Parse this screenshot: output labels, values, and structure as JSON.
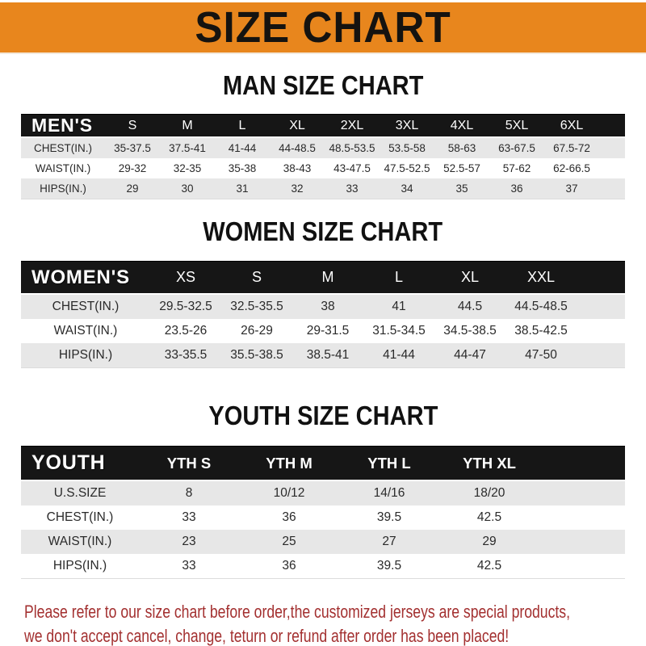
{
  "banner": {
    "title": "SIZE CHART",
    "bg_color": "#e8861d",
    "text_color": "#151310"
  },
  "sections": [
    {
      "key": "men",
      "heading": "MAN SIZE CHART",
      "table": {
        "corner_label": "MEN'S",
        "columns": [
          "S",
          "M",
          "L",
          "XL",
          "2XL",
          "3XL",
          "4XL",
          "5XL",
          "6XL"
        ],
        "rows": [
          {
            "label": "CHEST(IN.)",
            "values": [
              "35-37.5",
              "37.5-41",
              "41-44",
              "44-48.5",
              "48.5-53.5",
              "53.5-58",
              "58-63",
              "63-67.5",
              "67.5-72"
            ]
          },
          {
            "label": "WAIST(IN.)",
            "values": [
              "29-32",
              "32-35",
              "35-38",
              "38-43",
              "43-47.5",
              "47.5-52.5",
              "52.5-57",
              "57-62",
              "62-66.5"
            ]
          },
          {
            "label": "HIPS(IN.)",
            "values": [
              "29",
              "30",
              "31",
              "32",
              "33",
              "34",
              "35",
              "36",
              "37"
            ]
          }
        ]
      }
    },
    {
      "key": "women",
      "heading": "WOMEN SIZE CHART",
      "table": {
        "corner_label": "WOMEN'S",
        "columns": [
          "XS",
          "S",
          "M",
          "L",
          "XL",
          "XXL"
        ],
        "rows": [
          {
            "label": "CHEST(IN.)",
            "values": [
              "29.5-32.5",
              "32.5-35.5",
              "38",
              "41",
              "44.5",
              "44.5-48.5"
            ]
          },
          {
            "label": "WAIST(IN.)",
            "values": [
              "23.5-26",
              "26-29",
              "29-31.5",
              "31.5-34.5",
              "34.5-38.5",
              "38.5-42.5"
            ]
          },
          {
            "label": "HIPS(IN.)",
            "values": [
              "33-35.5",
              "35.5-38.5",
              "38.5-41",
              "41-44",
              "44-47",
              "47-50"
            ]
          }
        ]
      }
    },
    {
      "key": "youth",
      "heading": "YOUTH SIZE CHART",
      "table": {
        "corner_label": "YOUTH",
        "columns": [
          "YTH S",
          "YTH M",
          "YTH L",
          "YTH XL"
        ],
        "rows": [
          {
            "label": "U.S.SIZE",
            "values": [
              "8",
              "10/12",
              "14/16",
              "18/20"
            ]
          },
          {
            "label": "CHEST(IN.)",
            "values": [
              "33",
              "36",
              "39.5",
              "42.5"
            ]
          },
          {
            "label": "WAIST(IN.)",
            "values": [
              "23",
              "25",
              "27",
              "29"
            ]
          },
          {
            "label": "HIPS(IN.)",
            "values": [
              "33",
              "36",
              "39.5",
              "42.5"
            ]
          }
        ]
      }
    }
  ],
  "footer": {
    "line1": "Please refer to our size chart before order,the customized jerseys are special products,",
    "line2": "we don't accept cancel, change, teturn or refund after order has been placed!",
    "text_color": "#a33030"
  },
  "colors": {
    "banner_orange": "#e8861d",
    "table_header_black": "#161616",
    "row_gray": "#e7e7e7",
    "row_white": "#ffffff"
  }
}
